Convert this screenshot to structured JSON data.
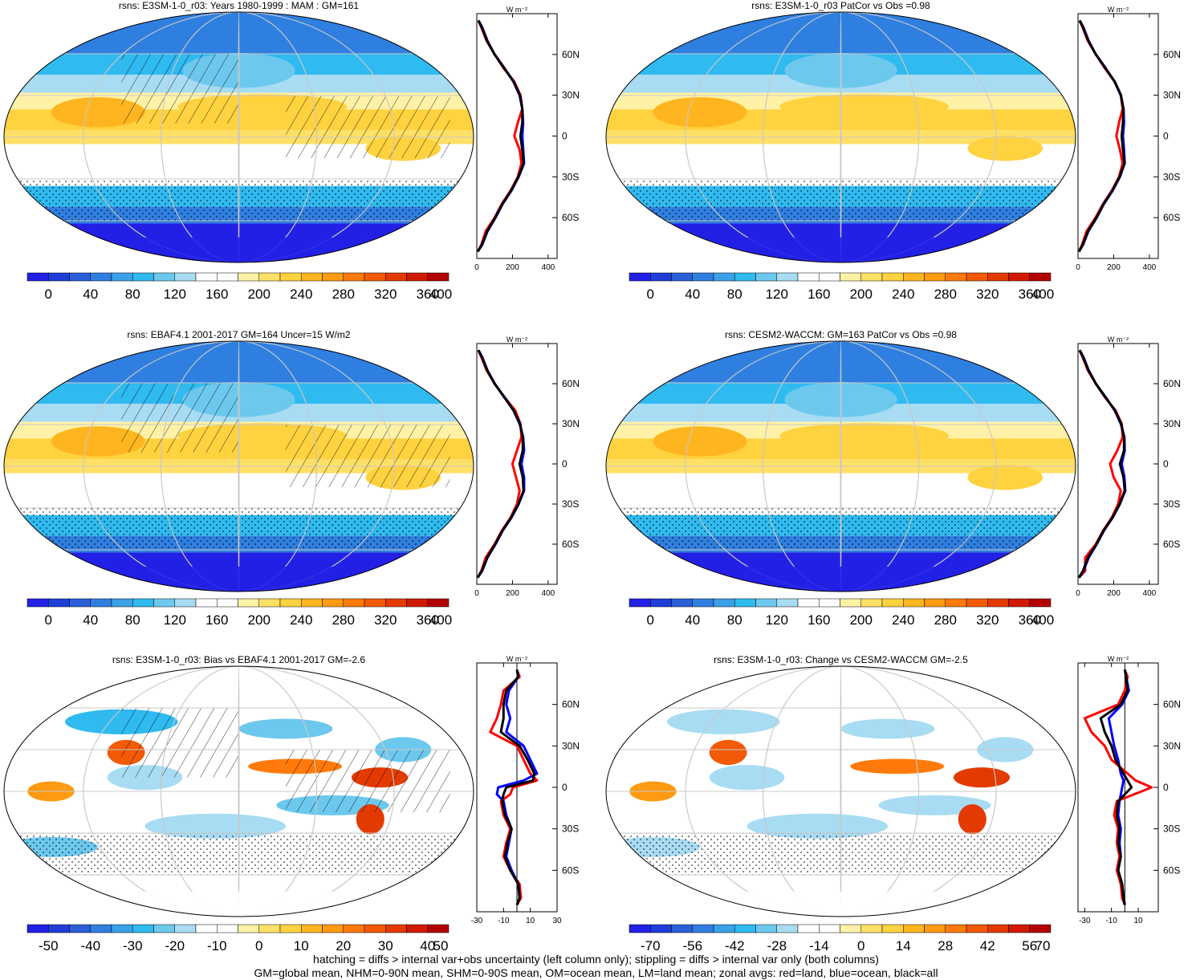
{
  "chart_data": [
    {
      "type": "heatmap",
      "title": "rsns: E3SM-1-0_r03: Years 1980-1999 : MAM : GM=161",
      "colorbar_ticks": [
        "0",
        "40",
        "80",
        "120",
        "160",
        "200",
        "240",
        "280",
        "320",
        "360",
        "400"
      ],
      "zonal_ticks": [
        "0",
        "200",
        "400"
      ],
      "zonal_unit": "W m⁻²",
      "lat_ticks": [
        "60N",
        "30N",
        "0",
        "30S",
        "60S"
      ],
      "zonal_ylim": [
        -90,
        90
      ],
      "zonal_xlim": [
        0,
        450
      ],
      "zonal_series": [
        {
          "color": "#ff0000",
          "lat": [
            -85,
            -80,
            -70,
            -60,
            -50,
            -40,
            -30,
            -20,
            -10,
            0,
            10,
            20,
            30,
            40,
            50,
            60,
            70,
            80,
            85
          ],
          "values": [
            5,
            25,
            50,
            100,
            140,
            190,
            230,
            250,
            240,
            210,
            230,
            255,
            245,
            210,
            150,
            100,
            55,
            25,
            8
          ]
        },
        {
          "color": "#0000ff",
          "lat": [
            -85,
            -80,
            -70,
            -60,
            -50,
            -40,
            -30,
            -20,
            -10,
            0,
            10,
            20,
            30,
            40,
            50,
            60,
            70,
            80,
            85
          ],
          "values": [
            5,
            30,
            60,
            105,
            145,
            195,
            235,
            265,
            260,
            255,
            260,
            255,
            240,
            205,
            155,
            100,
            60,
            30,
            10
          ]
        },
        {
          "color": "#000000",
          "lat": [
            -85,
            -80,
            -70,
            -60,
            -50,
            -40,
            -30,
            -20,
            -10,
            0,
            10,
            20,
            30,
            40,
            50,
            60,
            70,
            80,
            85
          ],
          "values": [
            5,
            28,
            58,
            103,
            143,
            193,
            233,
            262,
            255,
            245,
            255,
            255,
            242,
            207,
            153,
            100,
            58,
            28,
            9
          ]
        }
      ]
    },
    {
      "type": "heatmap",
      "title": "rsns: E3SM-1-0_r03 PatCor vs Obs =0.98",
      "colorbar_ticks": [
        "0",
        "40",
        "80",
        "120",
        "160",
        "200",
        "240",
        "280",
        "320",
        "360",
        "400"
      ],
      "zonal_ticks": [
        "0",
        "200",
        "400"
      ],
      "zonal_unit": "W m⁻²",
      "lat_ticks": [
        "60N",
        "30N",
        "0",
        "30S",
        "60S"
      ],
      "zonal_ylim": [
        -90,
        90
      ],
      "zonal_xlim": [
        0,
        450
      ],
      "zonal_series": [
        {
          "color": "#ff0000",
          "lat": [
            -85,
            -80,
            -70,
            -60,
            -50,
            -40,
            -30,
            -20,
            -10,
            0,
            10,
            20,
            30,
            40,
            50,
            60,
            70,
            80,
            85
          ],
          "values": [
            5,
            22,
            48,
            98,
            140,
            190,
            230,
            250,
            235,
            215,
            230,
            250,
            240,
            205,
            150,
            100,
            55,
            25,
            8
          ]
        },
        {
          "color": "#0000ff",
          "lat": [
            -85,
            -80,
            -70,
            -60,
            -50,
            -40,
            -30,
            -20,
            -10,
            0,
            10,
            20,
            30,
            40,
            50,
            60,
            70,
            80,
            85
          ],
          "values": [
            5,
            28,
            58,
            105,
            145,
            195,
            235,
            262,
            258,
            252,
            258,
            255,
            240,
            205,
            155,
            100,
            60,
            30,
            10
          ]
        },
        {
          "color": "#000000",
          "lat": [
            -85,
            -80,
            -70,
            -60,
            -50,
            -40,
            -30,
            -20,
            -10,
            0,
            10,
            20,
            30,
            40,
            50,
            60,
            70,
            80,
            85
          ],
          "values": [
            5,
            26,
            56,
            103,
            143,
            193,
            233,
            260,
            252,
            245,
            252,
            254,
            241,
            206,
            153,
            100,
            58,
            28,
            9
          ]
        }
      ]
    },
    {
      "type": "heatmap",
      "title": "rsns: EBAF4.1 2001-2017 GM=164 Uncer=15 W/m2",
      "colorbar_ticks": [
        "0",
        "40",
        "80",
        "120",
        "160",
        "200",
        "240",
        "280",
        "320",
        "360",
        "400"
      ],
      "zonal_ticks": [
        "0",
        "200",
        "400"
      ],
      "zonal_unit": "W m⁻²",
      "lat_ticks": [
        "60N",
        "30N",
        "0",
        "30S",
        "60S"
      ],
      "zonal_ylim": [
        -90,
        90
      ],
      "zonal_xlim": [
        0,
        450
      ],
      "zonal_series": [
        {
          "color": "#ff0000",
          "lat": [
            -85,
            -80,
            -70,
            -60,
            -50,
            -40,
            -30,
            -20,
            -10,
            0,
            10,
            20,
            30,
            40,
            50,
            60,
            70,
            80,
            85
          ],
          "values": [
            5,
            25,
            50,
            100,
            140,
            190,
            225,
            240,
            220,
            200,
            225,
            250,
            245,
            215,
            155,
            100,
            55,
            25,
            8
          ]
        },
        {
          "color": "#0000ff",
          "lat": [
            -85,
            -80,
            -70,
            -60,
            -50,
            -40,
            -30,
            -20,
            -10,
            0,
            10,
            20,
            30,
            40,
            50,
            60,
            70,
            80,
            85
          ],
          "values": [
            5,
            30,
            60,
            105,
            145,
            195,
            235,
            265,
            265,
            250,
            265,
            260,
            240,
            205,
            155,
            100,
            60,
            30,
            10
          ]
        },
        {
          "color": "#000000",
          "lat": [
            -85,
            -80,
            -70,
            -60,
            -50,
            -40,
            -30,
            -20,
            -10,
            0,
            10,
            20,
            30,
            40,
            50,
            60,
            70,
            80,
            85
          ],
          "values": [
            5,
            28,
            58,
            103,
            143,
            193,
            233,
            262,
            258,
            240,
            258,
            258,
            242,
            207,
            153,
            100,
            58,
            28,
            9
          ]
        }
      ]
    },
    {
      "type": "heatmap",
      "title": "rsns: CESM2-WACCM: GM=163 PatCor vs Obs =0.98",
      "colorbar_ticks": [
        "0",
        "40",
        "80",
        "120",
        "160",
        "200",
        "240",
        "280",
        "320",
        "360",
        "400"
      ],
      "zonal_ticks": [
        "0",
        "200",
        "400"
      ],
      "zonal_unit": "W m⁻²",
      "lat_ticks": [
        "60N",
        "30N",
        "0",
        "30S",
        "60S"
      ],
      "zonal_ylim": [
        -90,
        90
      ],
      "zonal_xlim": [
        0,
        450
      ],
      "zonal_series": [
        {
          "color": "#ff0000",
          "lat": [
            -85,
            -80,
            -70,
            -60,
            -50,
            -40,
            -30,
            -20,
            -10,
            0,
            10,
            20,
            30,
            40,
            50,
            60,
            70,
            80,
            85
          ],
          "values": [
            5,
            40,
            40,
            100,
            140,
            190,
            225,
            240,
            200,
            180,
            220,
            250,
            245,
            210,
            150,
            100,
            55,
            25,
            8
          ]
        },
        {
          "color": "#0000ff",
          "lat": [
            -85,
            -80,
            -70,
            -60,
            -50,
            -40,
            -30,
            -20,
            -10,
            0,
            10,
            20,
            30,
            40,
            50,
            60,
            70,
            80,
            85
          ],
          "values": [
            5,
            30,
            60,
            105,
            145,
            195,
            235,
            265,
            260,
            245,
            262,
            260,
            240,
            205,
            155,
            100,
            60,
            30,
            10
          ]
        },
        {
          "color": "#000000",
          "lat": [
            -85,
            -80,
            -70,
            -60,
            -50,
            -40,
            -30,
            -20,
            -10,
            0,
            10,
            20,
            30,
            40,
            50,
            60,
            70,
            80,
            85
          ],
          "values": [
            5,
            28,
            56,
            103,
            143,
            193,
            233,
            262,
            255,
            235,
            258,
            258,
            242,
            207,
            153,
            100,
            58,
            28,
            9
          ]
        }
      ]
    },
    {
      "type": "heatmap",
      "title": "rsns: E3SM-1-0_r03: Bias vs EBAF4.1 2001-2017 GM=-2.6",
      "colorbar_ticks": [
        "-50",
        "-40",
        "-30",
        "-20",
        "-10",
        "0",
        "10",
        "20",
        "30",
        "40",
        "50"
      ],
      "zonal_ticks": [
        "-30",
        "-10",
        "10",
        "30"
      ],
      "zonal_unit": "W m⁻²",
      "lat_ticks": [
        "60N",
        "30N",
        "0",
        "30S",
        "60S"
      ],
      "zonal_ylim": [
        -90,
        90
      ],
      "zonal_xlim": [
        -30,
        30
      ],
      "zonal_series": [
        {
          "color": "#ff0000",
          "lat": [
            -85,
            -80,
            -70,
            -60,
            -50,
            -40,
            -30,
            -20,
            -10,
            -5,
            0,
            5,
            10,
            20,
            30,
            40,
            50,
            60,
            70,
            80,
            85
          ],
          "values": [
            0,
            3,
            2,
            -5,
            -10,
            -8,
            -5,
            -10,
            -12,
            -5,
            -3,
            15,
            10,
            5,
            0,
            -20,
            -15,
            -12,
            -10,
            2,
            0
          ]
        },
        {
          "color": "#0000ff",
          "lat": [
            -85,
            -80,
            -70,
            -60,
            -50,
            -40,
            -30,
            -20,
            -10,
            -5,
            0,
            5,
            10,
            20,
            30,
            40,
            50,
            60,
            70,
            80,
            85
          ],
          "values": [
            0,
            2,
            1,
            -4,
            -8,
            -6,
            -4,
            -8,
            -10,
            -15,
            -14,
            5,
            15,
            10,
            5,
            -8,
            -5,
            -8,
            -6,
            1,
            0
          ]
        },
        {
          "color": "#000000",
          "lat": [
            -85,
            -80,
            -70,
            -60,
            -50,
            -40,
            -30,
            -20,
            -10,
            -5,
            0,
            5,
            10,
            20,
            30,
            40,
            50,
            60,
            70,
            80,
            85
          ],
          "values": [
            0,
            2,
            1,
            -5,
            -9,
            -7,
            -4,
            -9,
            -11,
            -10,
            -8,
            12,
            13,
            8,
            2,
            -12,
            -10,
            -10,
            -8,
            1,
            0
          ]
        }
      ]
    },
    {
      "type": "heatmap",
      "title": "rsns: E3SM-1-0_r03: Change vs CESM2-WACCM GM=-2.5",
      "colorbar_ticks": [
        "-70",
        "-56",
        "-42",
        "-28",
        "-14",
        "0",
        "14",
        "28",
        "42",
        "56",
        "70"
      ],
      "zonal_ticks": [
        "-30",
        "-10",
        "10"
      ],
      "zonal_unit": "W m⁻²",
      "lat_ticks": [
        "60N",
        "30N",
        "0",
        "30S",
        "60S"
      ],
      "zonal_ylim": [
        -90,
        90
      ],
      "zonal_xlim": [
        -35,
        25
      ],
      "zonal_series": [
        {
          "color": "#ff0000",
          "lat": [
            -85,
            -80,
            -70,
            -60,
            -50,
            -40,
            -30,
            -20,
            -10,
            0,
            5,
            10,
            20,
            30,
            40,
            50,
            60,
            70,
            80,
            85
          ],
          "values": [
            0,
            -2,
            -3,
            -6,
            -4,
            -6,
            -5,
            -8,
            -6,
            20,
            8,
            2,
            -10,
            -15,
            -25,
            -30,
            -5,
            0,
            2,
            0
          ]
        },
        {
          "color": "#0000ff",
          "lat": [
            -85,
            -80,
            -70,
            -60,
            -50,
            -40,
            -30,
            -20,
            -10,
            0,
            5,
            10,
            20,
            30,
            40,
            50,
            60,
            70,
            80,
            85
          ],
          "values": [
            0,
            -1,
            -2,
            -5,
            -3,
            -4,
            -3,
            -5,
            -4,
            -2,
            -1,
            -3,
            -5,
            -8,
            -10,
            -12,
            -2,
            3,
            1,
            0
          ]
        },
        {
          "color": "#000000",
          "lat": [
            -85,
            -80,
            -70,
            -60,
            -50,
            -40,
            -30,
            -20,
            -10,
            0,
            5,
            10,
            20,
            30,
            40,
            50,
            60,
            70,
            80,
            85
          ],
          "values": [
            0,
            -1,
            -2,
            -5,
            -3,
            -5,
            -4,
            -6,
            -5,
            5,
            2,
            -1,
            -7,
            -10,
            -15,
            -18,
            -3,
            2,
            1,
            0
          ]
        }
      ]
    }
  ],
  "footer": {
    "line1": "hatching = diffs > internal var+obs uncertainty (left column only); stippling = diffs > internal var only (both columns)",
    "line2": "GM=global mean, NHM=0-90N mean, SHM=0-90S mean, OM=ocean mean, LM=land mean; zonal avgs: red=land, blue=ocean, black=all"
  },
  "palettes": {
    "abs": [
      "#2320e6",
      "#1e3ed7",
      "#2a5fd8",
      "#2f7fe0",
      "#3aa0e8",
      "#2fbaf0",
      "#6dc8ee",
      "#a8dcf3",
      "#ffffff",
      "#ffffff",
      "#fff2a6",
      "#ffe066",
      "#ffd23f",
      "#ffb51f",
      "#ff9a12",
      "#ff7a0a",
      "#f25a05",
      "#e33a02",
      "#d11a01",
      "#b30000"
    ],
    "diff": [
      "#2320e6",
      "#1e3ed7",
      "#2a5fd8",
      "#2f7fe0",
      "#3aa0e8",
      "#2fbaf0",
      "#6dc8ee",
      "#a8dcf3",
      "#ffffff",
      "#ffffff",
      "#fff2a6",
      "#ffe066",
      "#ffd23f",
      "#ffb51f",
      "#ff9a12",
      "#ff7a0a",
      "#f25a05",
      "#e33a02",
      "#d11a01",
      "#b30000"
    ]
  }
}
